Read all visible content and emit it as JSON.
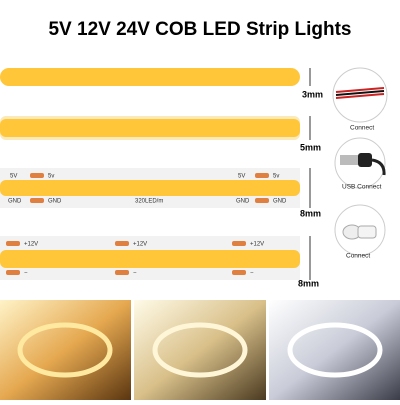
{
  "title": "5V 12V 24V COB LED Strip  Lights",
  "strips": [
    {
      "width_label": "3mm"
    },
    {
      "width_label": "5mm"
    },
    {
      "width_label": "8mm",
      "pads": {
        "positive": "5V",
        "positive_alt": "5v",
        "ground": "GND"
      },
      "density": "320LED/m"
    },
    {
      "width_label": "8mm",
      "pads": {
        "positive": "+12V",
        "ground": "−"
      }
    }
  ],
  "connectors": [
    {
      "label": "Connect"
    },
    {
      "label": "USB Connect"
    },
    {
      "label": "Connect"
    }
  ]
}
